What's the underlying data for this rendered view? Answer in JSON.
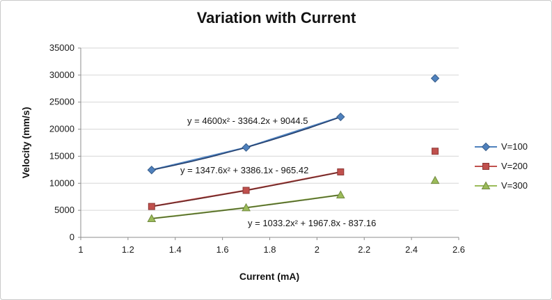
{
  "chart_data": {
    "type": "scatter",
    "title": "Variation with Current",
    "xlabel": "Current (mA)",
    "ylabel": "Velocity (mm/s)",
    "xlim": [
      1,
      2.6
    ],
    "ylim": [
      0,
      35000
    ],
    "x_ticks": [
      1,
      1.2,
      1.4,
      1.6,
      1.8,
      2,
      2.2,
      2.4,
      2.6
    ],
    "x_tick_labels": [
      "1",
      "1.2",
      "1.4",
      "1.6",
      "1.8",
      "2",
      "2.2",
      "2.4",
      "2.6"
    ],
    "y_ticks": [
      0,
      5000,
      10000,
      15000,
      20000,
      25000,
      30000,
      35000
    ],
    "y_tick_labels": [
      "0",
      "5000",
      "10000",
      "15000",
      "20000",
      "25000",
      "30000",
      "35000"
    ],
    "grid": "horizontal",
    "gridline_color": "#d6d6d6",
    "axis_color": "#8c8c8c",
    "legend_position": "right",
    "series": [
      {
        "name": "V=100",
        "marker": "diamond",
        "color": "#4F81BD",
        "marker_stroke": "#385D8A",
        "trend_color": "#1F3864",
        "x": [
          1.3,
          1.7,
          2.1,
          2.5
        ],
        "y": [
          12450,
          16620,
          22270,
          29400
        ],
        "connected_points": 3,
        "trendline": {
          "type": "polynomial",
          "order": 2,
          "a": 4600,
          "b": -3364.2,
          "c": 9044.5,
          "x_range": [
            1.3,
            2.1
          ]
        },
        "equation": "y = 4600x² - 3364.2x + 9044.5"
      },
      {
        "name": "V=200",
        "marker": "square",
        "color": "#C0504D",
        "marker_stroke": "#8C3836",
        "trend_color": "#632423",
        "x": [
          1.3,
          1.7,
          2.1,
          2.5
        ],
        "y": [
          5710,
          8690,
          12090,
          15920
        ],
        "connected_points": 3,
        "trendline": {
          "type": "polynomial",
          "order": 2,
          "a": 1347.6,
          "b": 3386.1,
          "c": -965.42,
          "x_range": [
            1.3,
            2.1
          ]
        },
        "equation": "y = 1347.6x² + 3386.1x - 965.42"
      },
      {
        "name": "V=300",
        "marker": "triangle",
        "color": "#9BBB59",
        "marker_stroke": "#71893F",
        "trend_color": "#4F6228",
        "x": [
          1.3,
          1.7,
          2.1,
          2.5
        ],
        "y": [
          3470,
          5490,
          7850,
          10540
        ],
        "connected_points": 3,
        "trendline": {
          "type": "polynomial",
          "order": 2,
          "a": 1033.2,
          "b": 1967.8,
          "c": -837.16,
          "x_range": [
            1.3,
            2.1
          ]
        },
        "equation": "y = 1033.2x² + 1967.8x - 837.16"
      }
    ]
  }
}
